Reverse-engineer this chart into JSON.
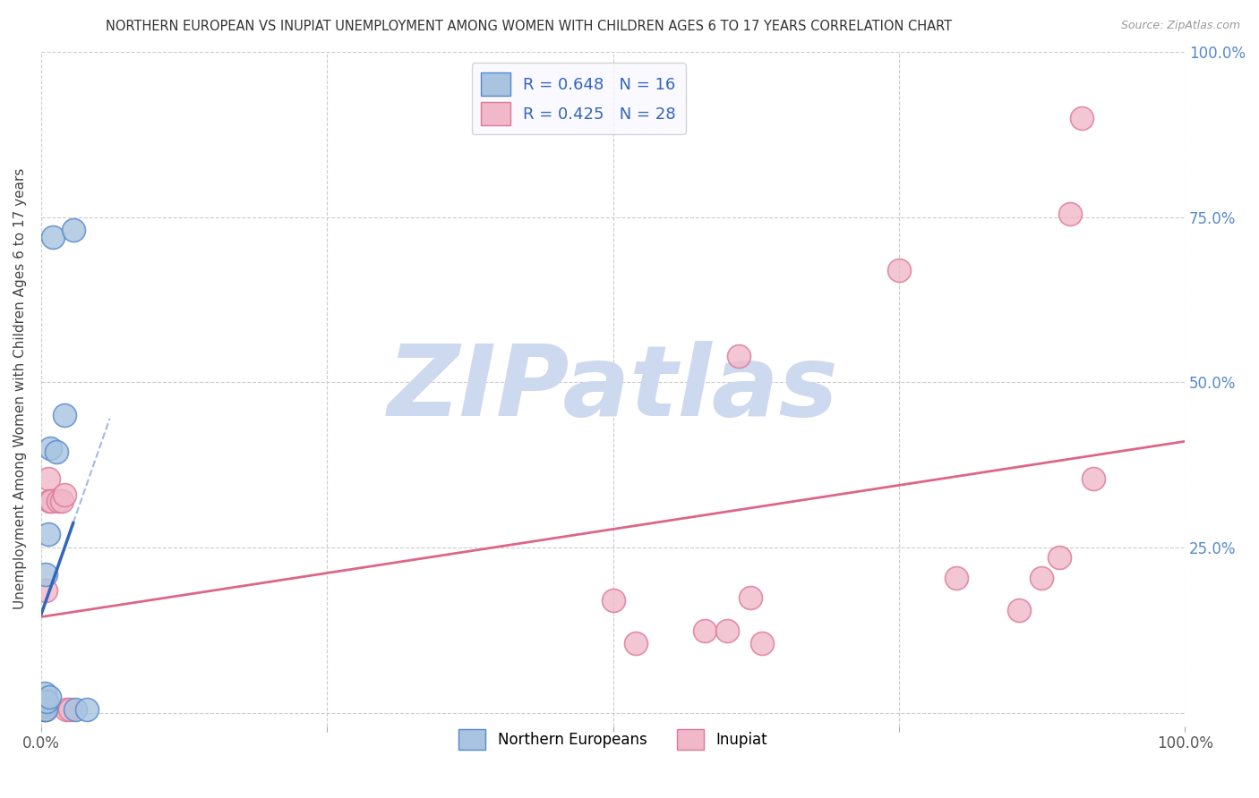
{
  "title": "NORTHERN EUROPEAN VS INUPIAT UNEMPLOYMENT AMONG WOMEN WITH CHILDREN AGES 6 TO 17 YEARS CORRELATION CHART",
  "source": "Source: ZipAtlas.com",
  "ylabel": "Unemployment Among Women with Children Ages 6 to 17 years",
  "xlim": [
    0,
    1.0
  ],
  "ylim": [
    -0.02,
    1.0
  ],
  "xticks": [
    0.0,
    0.25,
    0.5,
    0.75,
    1.0
  ],
  "xticklabels": [
    "0.0%",
    "",
    "",
    "",
    "100.0%"
  ],
  "yticks": [
    0.0,
    0.25,
    0.5,
    0.75,
    1.0
  ],
  "yticklabels_right": [
    "",
    "25.0%",
    "50.0%",
    "75.0%",
    "100.0%"
  ],
  "background_color": "#ffffff",
  "grid_color": "#cccccc",
  "ne_color": "#a8c4e0",
  "ne_edge_color": "#5588cc",
  "ne_line_color": "#3366bb",
  "in_color": "#f0b8c8",
  "in_edge_color": "#dd7799",
  "in_line_color": "#dd6688",
  "northern_european_R": 0.648,
  "northern_european_N": 16,
  "inupiat_R": 0.425,
  "inupiat_N": 28,
  "ne_x": [
    0.002,
    0.002,
    0.003,
    0.003,
    0.004,
    0.004,
    0.005,
    0.006,
    0.007,
    0.008,
    0.01,
    0.013,
    0.02,
    0.028,
    0.03,
    0.04
  ],
  "ne_y": [
    0.005,
    0.012,
    0.02,
    0.03,
    0.005,
    0.21,
    0.018,
    0.27,
    0.025,
    0.4,
    0.72,
    0.395,
    0.45,
    0.73,
    0.005,
    0.005
  ],
  "in_x": [
    0.002,
    0.003,
    0.004,
    0.004,
    0.005,
    0.006,
    0.007,
    0.009,
    0.015,
    0.018,
    0.02,
    0.022,
    0.025,
    0.5,
    0.52,
    0.58,
    0.6,
    0.61,
    0.62,
    0.63,
    0.75,
    0.8,
    0.855,
    0.875,
    0.89,
    0.9,
    0.91,
    0.92
  ],
  "in_y": [
    0.005,
    0.012,
    0.005,
    0.185,
    0.01,
    0.355,
    0.32,
    0.32,
    0.32,
    0.32,
    0.33,
    0.005,
    0.005,
    0.17,
    0.105,
    0.125,
    0.125,
    0.54,
    0.175,
    0.105,
    0.67,
    0.205,
    0.155,
    0.205,
    0.235,
    0.755,
    0.9,
    0.355
  ],
  "watermark_text": "ZIPatlas",
  "watermark_color": "#ccd9ee",
  "legend_facecolor": "#f8f8ff",
  "right_tick_color": "#5588cc"
}
